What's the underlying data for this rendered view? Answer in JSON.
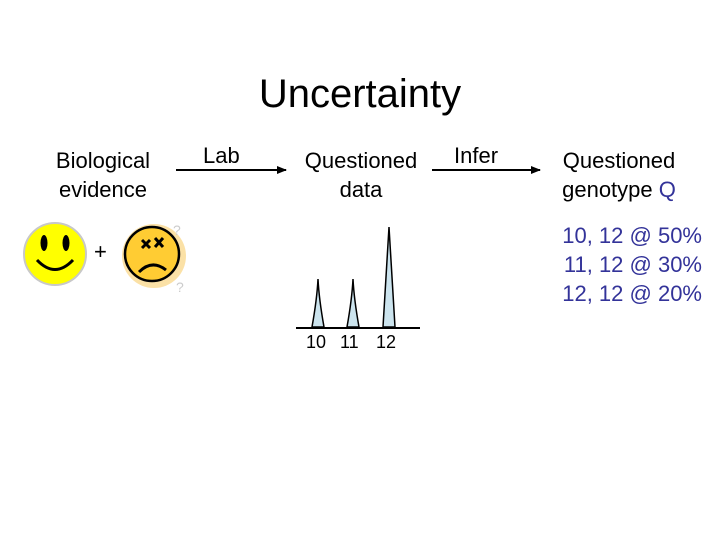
{
  "title": "Uncertainty",
  "nodes": {
    "biological": [
      "Biological",
      "evidence"
    ],
    "questioned_data": [
      "Questioned",
      "data"
    ],
    "questioned_genotype": [
      "Questioned",
      "genotype",
      "Q"
    ]
  },
  "edges": {
    "lab": "Lab",
    "infer": "Infer"
  },
  "plus": "+",
  "faces": [
    "happy-face",
    "sad-face"
  ],
  "peak_labels": [
    "10",
    "11",
    "12"
  ],
  "peak_heights": [
    0.48,
    0.48,
    1.0
  ],
  "genotypes": [
    "10, 12 @ 50%",
    "11, 12 @ 30%",
    "12, 12 @ 20%"
  ],
  "colors": {
    "genotype_text": "#333399",
    "peak_fill": "#cce4ee",
    "face_fill": "#ffff00",
    "sad_face_fill": "#ffcc33"
  }
}
